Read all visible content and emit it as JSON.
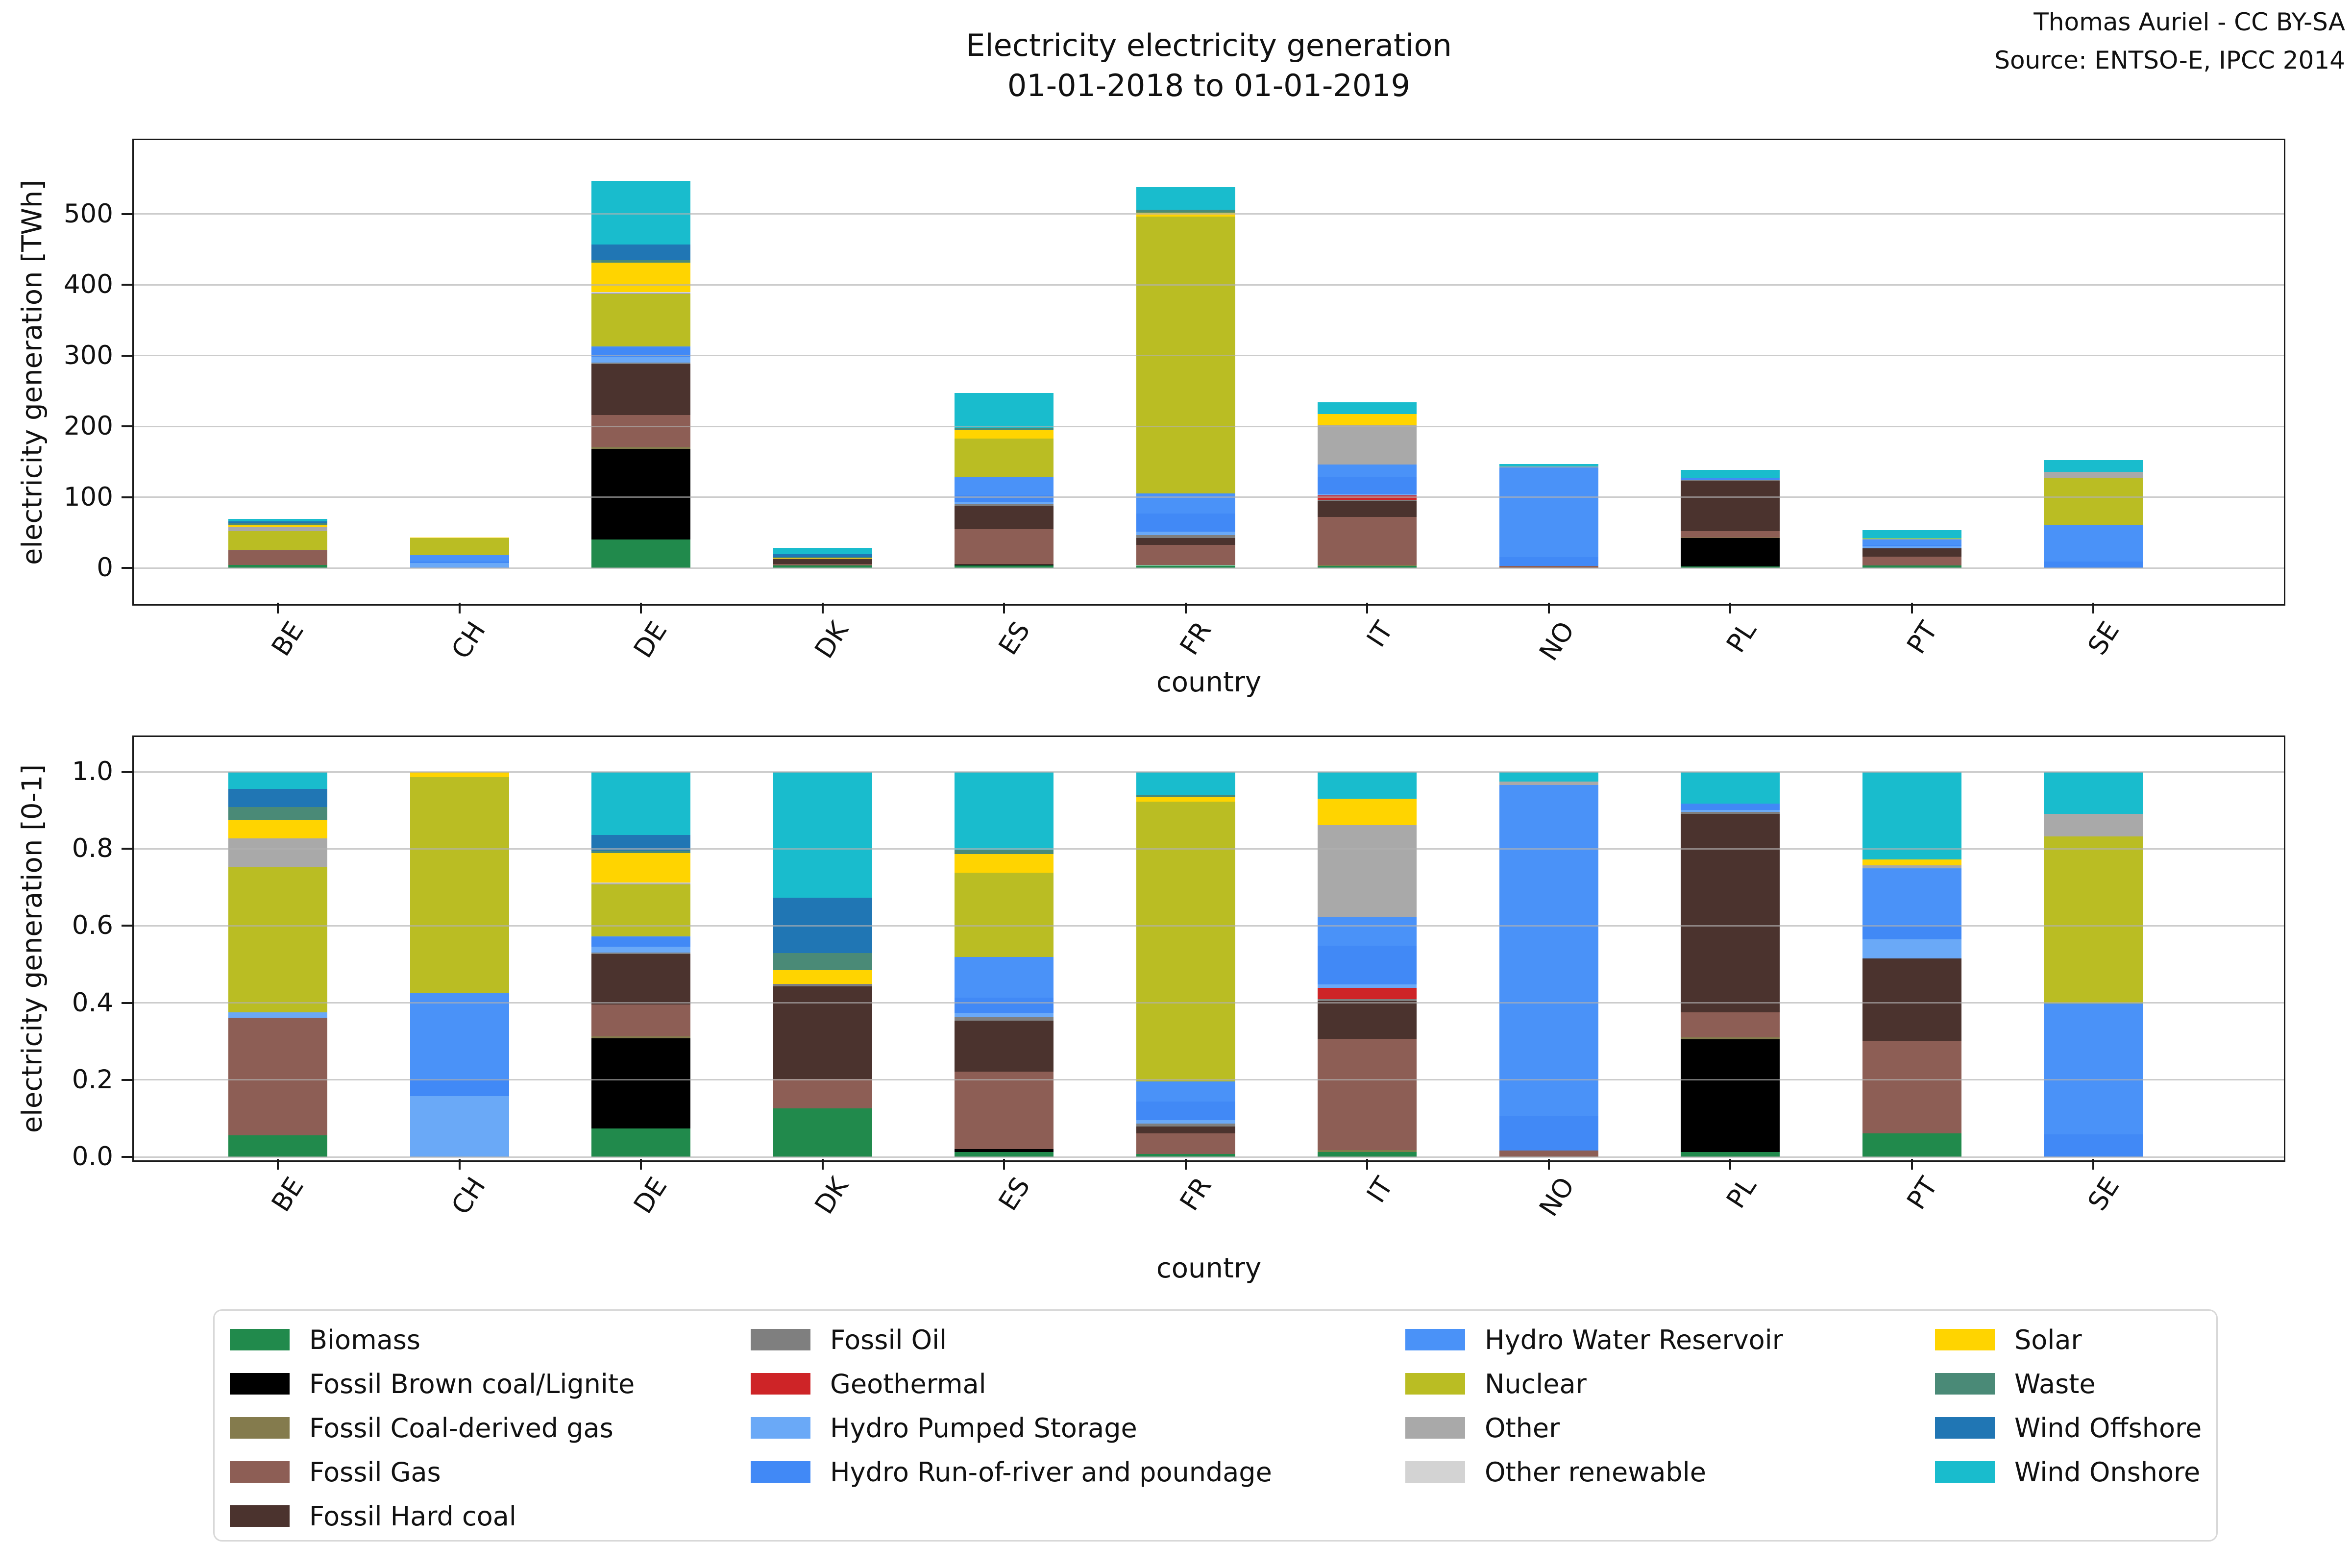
{
  "title": {
    "line1": "Electricity electricity generation",
    "line2": "01-01-2018 to 01-01-2019"
  },
  "attribution": {
    "line1": "Thomas Auriel - CC BY-SA",
    "line2": "Source: ENTSO-E, IPCC 2014"
  },
  "chart_data": {
    "type": "bar",
    "subtype": "stacked",
    "categories": [
      "BE",
      "CH",
      "DE",
      "DK",
      "ES",
      "FR",
      "IT",
      "NO",
      "PL",
      "PT",
      "SE"
    ],
    "series": [
      {
        "name": "Biomass",
        "color": "#218a4c",
        "values": [
          3.9,
          0,
          40,
          3.6,
          3.2,
          3.8,
          3.0,
          0,
          1.8,
          3.3,
          0
        ]
      },
      {
        "name": "Fossil Brown coal/Lignite",
        "color": "#000000",
        "values": [
          0,
          0,
          128,
          0,
          1.7,
          0,
          0,
          0,
          40.5,
          0,
          0
        ]
      },
      {
        "name": "Fossil Coal-derived gas",
        "color": "#847b4d",
        "values": [
          0,
          0,
          3.0,
          0,
          0,
          0,
          1.2,
          0,
          0.7,
          0,
          0
        ]
      },
      {
        "name": "Fossil Gas",
        "color": "#8d5e55",
        "values": [
          21.0,
          0,
          45,
          2.2,
          50.0,
          29.0,
          67.6,
          2.5,
          9.0,
          12.8,
          0
        ]
      },
      {
        "name": "Fossil Hard coal",
        "color": "#4b332e",
        "values": [
          0,
          0,
          72,
          6.9,
          32.6,
          9.7,
          22.7,
          0,
          71.5,
          11.5,
          0
        ]
      },
      {
        "name": "Fossil Oil",
        "color": "#7f7f7f",
        "values": [
          0,
          0,
          2.2,
          0.2,
          2.5,
          3.8,
          1.4,
          0,
          0.7,
          0,
          0
        ]
      },
      {
        "name": "Geothermal",
        "color": "#ce2427",
        "values": [
          0,
          0,
          0,
          0,
          0,
          0,
          6.8,
          0,
          0,
          0,
          0
        ]
      },
      {
        "name": "Hydro Pumped Storage",
        "color": "#6aa9f7",
        "values": [
          1.0,
          6.8,
          8.0,
          0,
          2.5,
          4.8,
          2.1,
          0,
          0.6,
          2.7,
          0
        ]
      },
      {
        "name": "Hydro Run-of-river and poundage",
        "color": "#4189f6",
        "values": [
          0,
          1.9,
          13.0,
          0,
          9.9,
          26.0,
          23.4,
          13.0,
          2.3,
          2.0,
          9.0
        ]
      },
      {
        "name": "Hydro Water Reservoir",
        "color": "#4a92f8",
        "values": [
          0,
          9.6,
          1.5,
          0,
          25.9,
          28.0,
          17.5,
          126.3,
          0,
          7.9,
          51.6
        ]
      },
      {
        "name": "Nuclear",
        "color": "#babd23",
        "values": [
          26.1,
          24.1,
          74,
          0,
          54.3,
          391,
          0,
          0,
          0,
          0,
          66
        ]
      },
      {
        "name": "Other",
        "color": "#a9a9a9",
        "values": [
          5.1,
          0,
          1.5,
          0,
          0,
          0,
          55.9,
          1.2,
          0,
          0.4,
          9.0
        ]
      },
      {
        "name": "Other renewable",
        "color": "#d3d3d3",
        "values": [
          0,
          0,
          1.3,
          0,
          0,
          0,
          0,
          0,
          0,
          0,
          0
        ]
      },
      {
        "name": "Solar",
        "color": "#ffd400",
        "values": [
          3.3,
          0.6,
          41.5,
          1.0,
          11.9,
          5.9,
          15.9,
          0,
          0,
          0.8,
          0
        ]
      },
      {
        "name": "Waste",
        "color": "#4a8a77",
        "values": [
          2.3,
          0,
          3.5,
          1.3,
          2.5,
          3.8,
          0,
          0,
          0,
          0,
          0
        ]
      },
      {
        "name": "Wind Offshore",
        "color": "#2076b4",
        "values": [
          3.2,
          0,
          22,
          4.1,
          0,
          0,
          0,
          0,
          0,
          0,
          0
        ]
      },
      {
        "name": "Wind Onshore",
        "color": "#19bccd",
        "values": [
          3.1,
          0,
          90,
          9.4,
          50.4,
          32,
          16.4,
          3.8,
          11.5,
          12.2,
          16.6
        ]
      }
    ],
    "charts": [
      {
        "id": "twh",
        "ylabel": "electricity generation [TWh]",
        "xlabel": "country",
        "yticks": [
          0,
          100,
          200,
          300,
          400,
          500
        ],
        "ylim": [
          0,
          604
        ],
        "normalized": false,
        "grid": true
      },
      {
        "id": "share",
        "ylabel": "electricity generation [0-1]",
        "xlabel": "country",
        "yticks": [
          0,
          0.2,
          0.4,
          0.6,
          0.8,
          1.0
        ],
        "ylim": [
          0,
          1.09
        ],
        "normalized": true,
        "grid": true
      }
    ],
    "legend": {
      "position": "bottom",
      "columns": [
        [
          "Biomass",
          "Fossil Brown coal/Lignite",
          "Fossil Coal-derived gas",
          "Fossil Gas",
          "Fossil Hard coal"
        ],
        [
          "Fossil Oil",
          "Geothermal",
          "Hydro Pumped Storage",
          "Hydro Run-of-river and poundage"
        ],
        [
          "Hydro Water Reservoir",
          "Nuclear",
          "Other",
          "Other renewable"
        ],
        [
          "Solar",
          "Waste",
          "Wind Offshore",
          "Wind Onshore"
        ]
      ]
    }
  }
}
